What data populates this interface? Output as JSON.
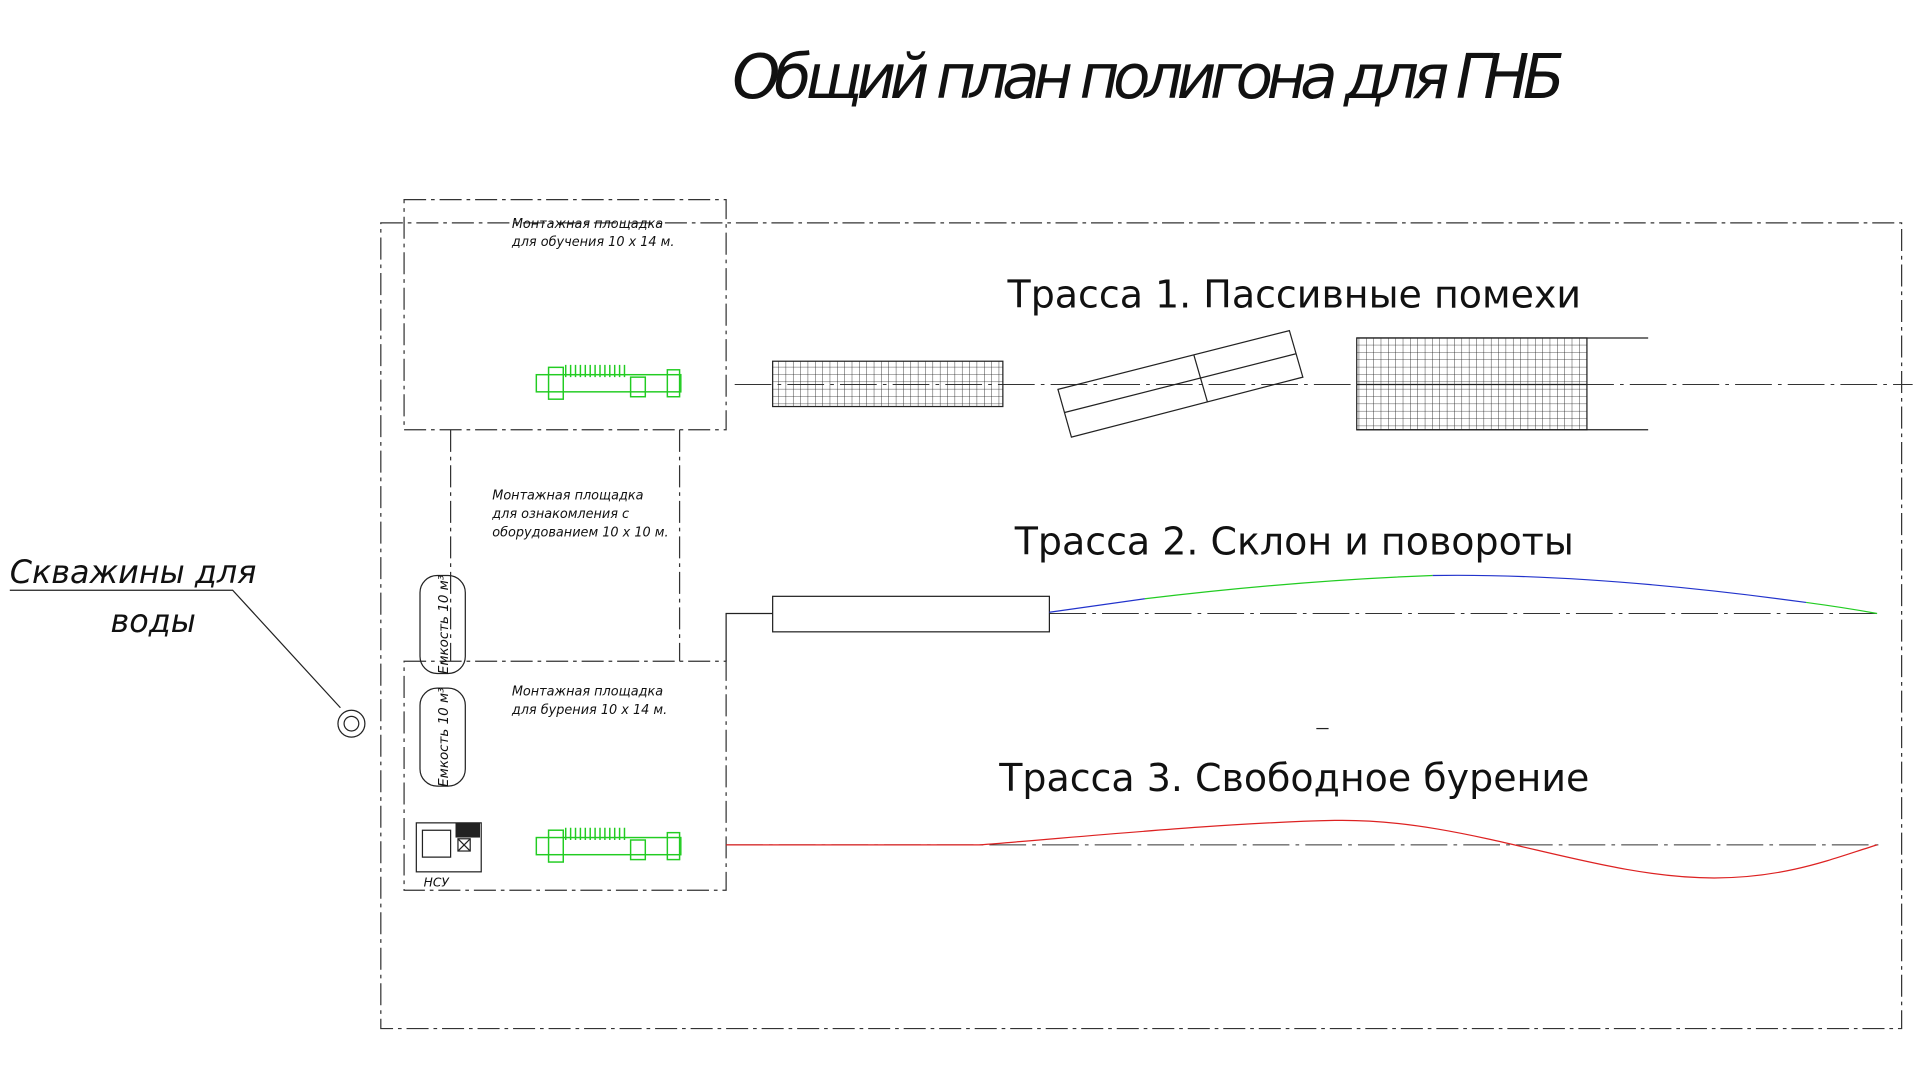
{
  "title": "Общий план полигона для ГНБ",
  "wells": {
    "label_lines": [
      "Скважины для",
      "воды"
    ]
  },
  "areas": [
    {
      "lines": [
        "Монтажная площадка",
        "для обучения  10 x 14  м."
      ]
    },
    {
      "lines": [
        "Монтажная площадка",
        "для ознакомления с",
        "оборудованием  10 x 10  м."
      ]
    },
    {
      "lines": [
        "Монтажная площадка",
        "для бурения  10 x 14  м."
      ]
    }
  ],
  "tanks": [
    {
      "label": "Емкость  10  м³"
    },
    {
      "label": "Емкость  10  м³"
    }
  ],
  "pump": {
    "label": "НСУ"
  },
  "routes": [
    {
      "label": "Трасса 1. Пассивные помехи"
    },
    {
      "label": "Трасса 2. Склон и повороты"
    },
    {
      "label": "Трасса 3. Свободное бурение"
    }
  ]
}
